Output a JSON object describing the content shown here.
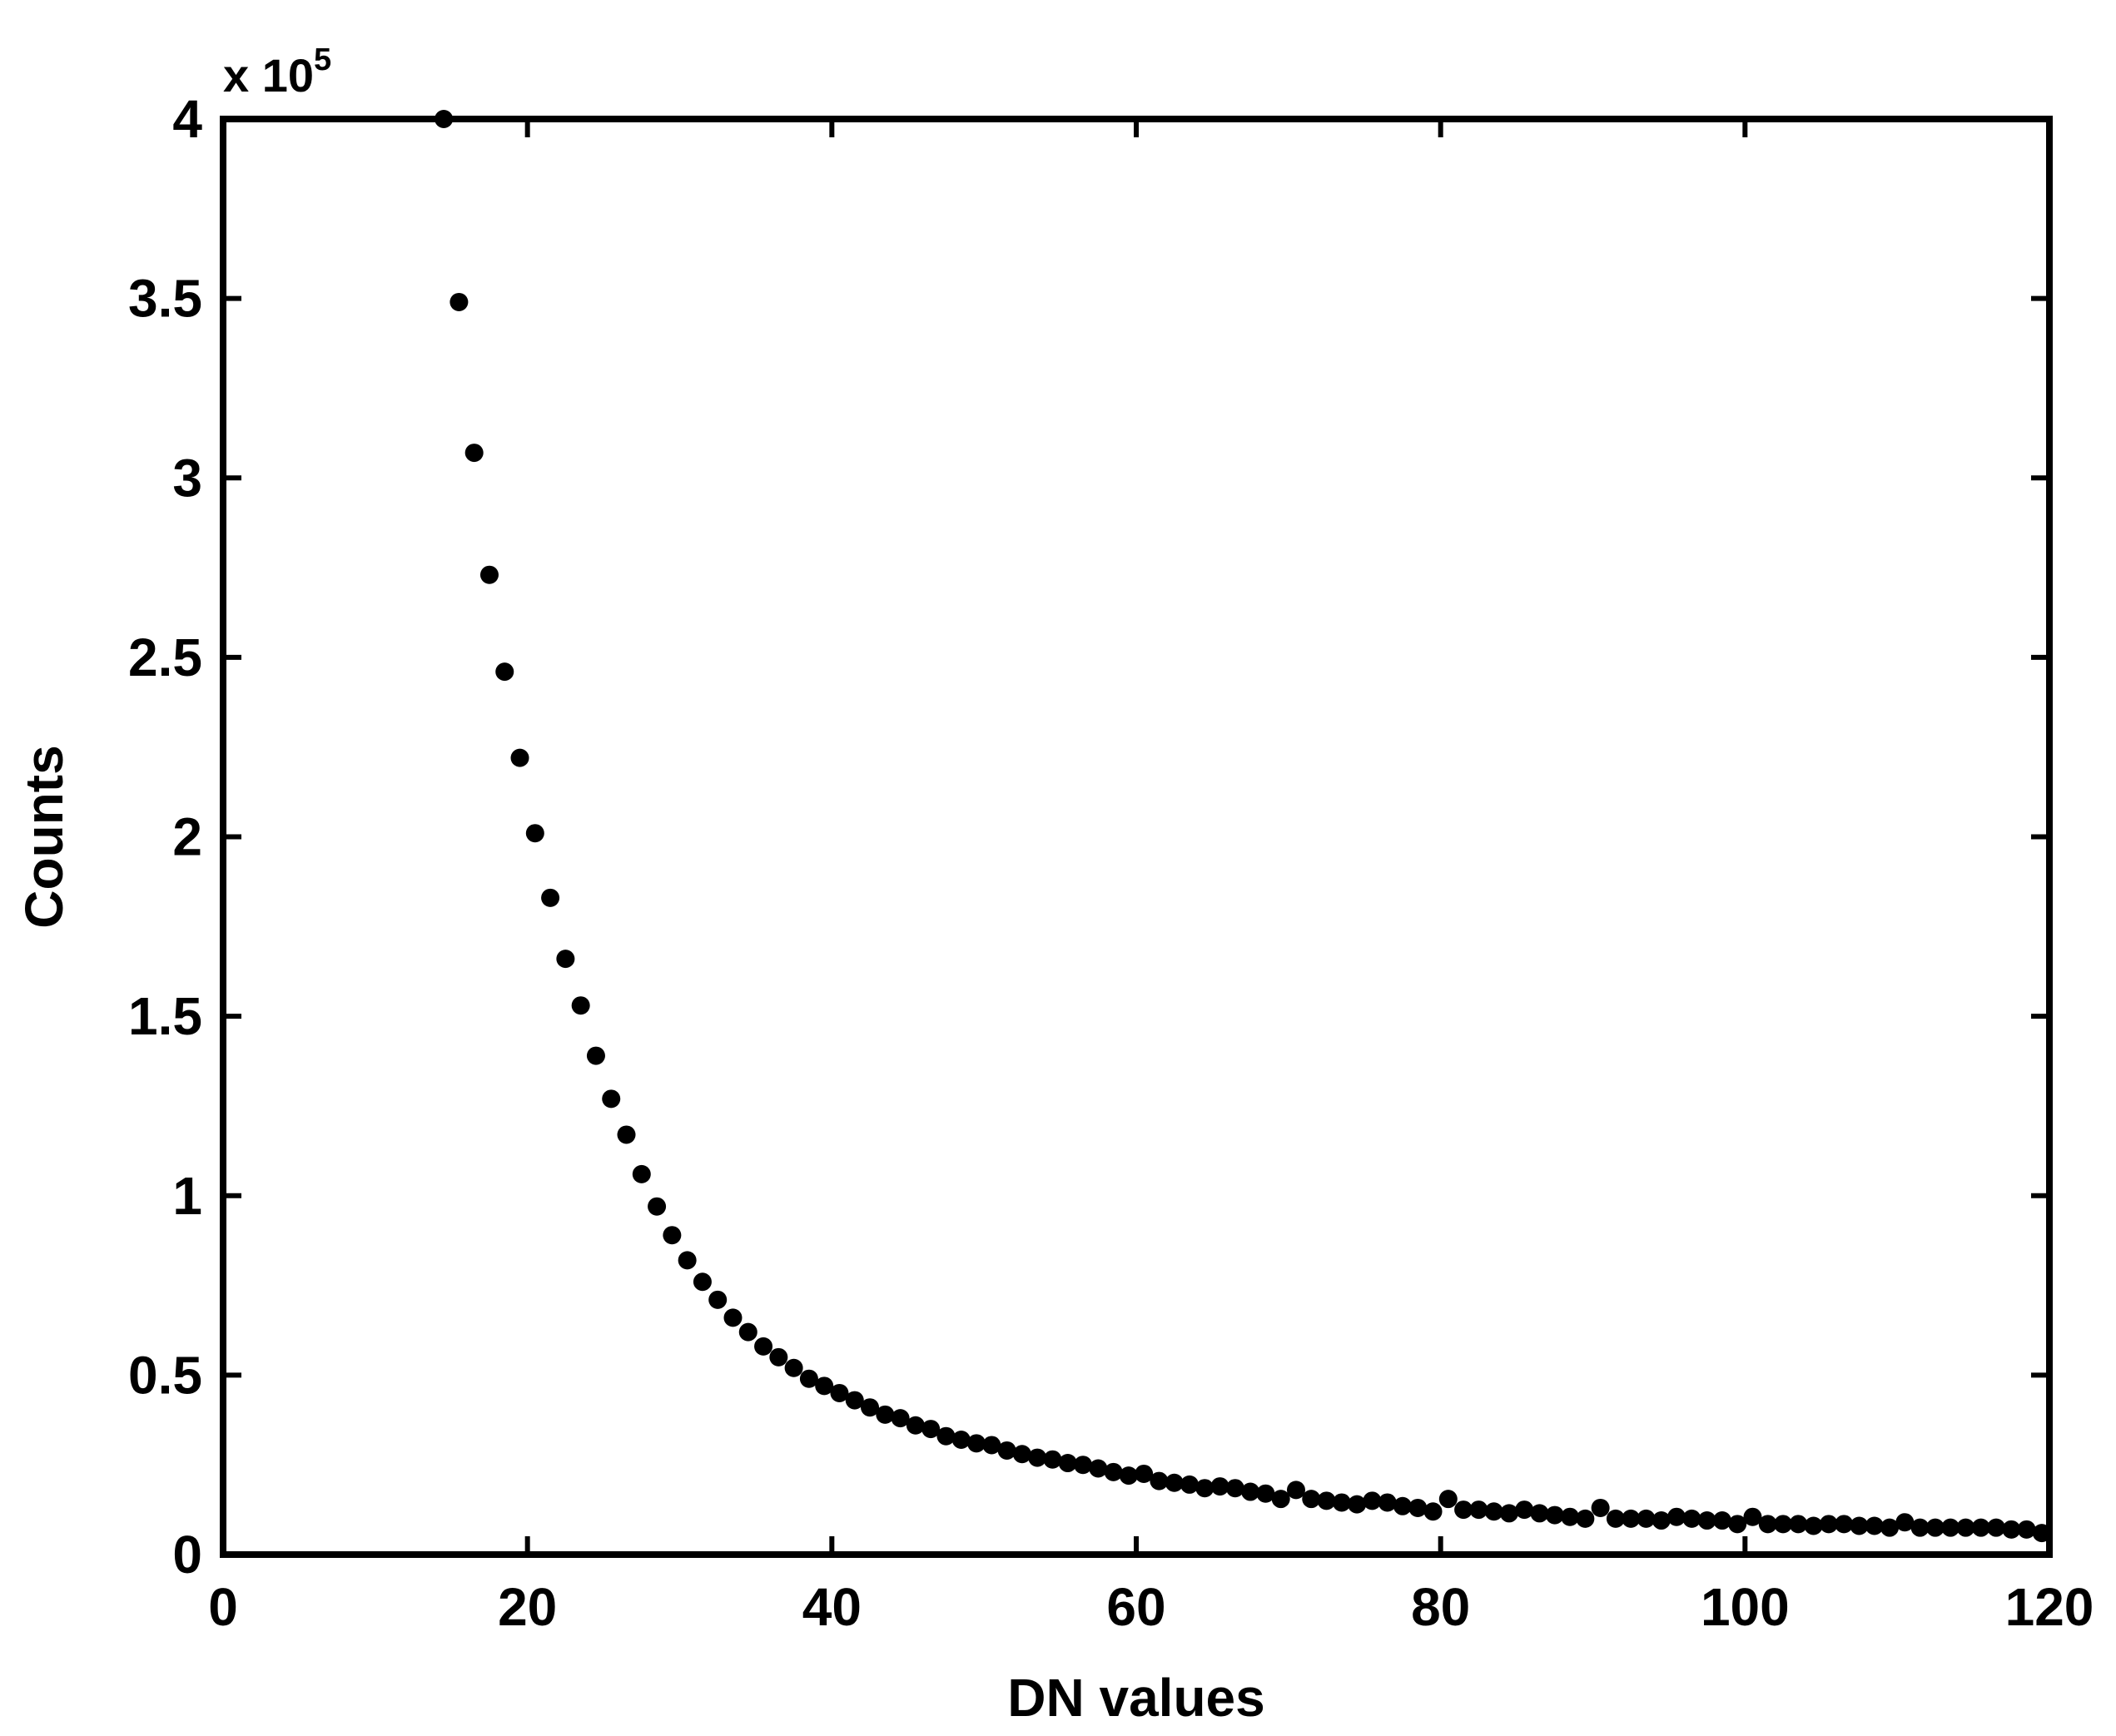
{
  "chart_data": {
    "type": "scatter",
    "title": "",
    "xlabel": "DN values",
    "ylabel": "Counts",
    "exponent_label": {
      "base": "x 10",
      "power": "5"
    },
    "xlim": [
      0,
      120
    ],
    "ylim": [
      0,
      4
    ],
    "x_ticks": [
      0,
      20,
      40,
      60,
      80,
      100,
      120
    ],
    "x_tick_labels": [
      "0",
      "20",
      "40",
      "60",
      "80",
      "100",
      "120"
    ],
    "y_ticks": [
      0,
      0.5,
      1,
      1.5,
      2,
      2.5,
      3,
      3.5,
      4
    ],
    "y_tick_labels": [
      "0",
      "0.5",
      "1",
      "1.5",
      "2",
      "2.5",
      "3",
      "3.5",
      "4"
    ],
    "grid": false,
    "marker_color": "#000000",
    "series": [
      {
        "x": [
          14.5,
          15.5,
          16.5,
          17.5,
          18.5,
          19.5,
          20.5,
          21.5,
          22.5,
          23.5,
          24.5,
          25.5,
          26.5,
          27.5,
          28.5,
          29.5,
          30.5,
          31.5,
          32.5,
          33.5,
          34.5,
          35.5,
          36.5,
          37.5,
          38.5,
          39.5,
          40.5,
          41.5,
          42.5,
          43.5,
          44.5,
          45.5,
          46.5,
          47.5,
          48.5,
          49.5,
          50.5,
          51.5,
          52.5,
          53.5,
          54.5,
          55.5,
          56.5,
          57.5,
          58.5,
          59.5,
          60.5,
          61.5,
          62.5,
          63.5,
          64.5,
          65.5,
          66.5,
          67.5,
          68.5,
          69.5,
          70.5,
          71.5,
          72.5,
          73.5,
          74.5,
          75.5,
          76.5,
          77.5,
          78.5,
          79.5,
          80.5,
          81.5,
          82.5,
          83.5,
          84.5,
          85.5,
          86.5,
          87.5,
          88.5,
          89.5,
          90.5,
          91.5,
          92.5,
          93.5,
          94.5,
          95.5,
          96.5,
          97.5,
          98.5,
          99.5,
          100.5,
          101.5,
          102.5,
          103.5,
          104.5,
          105.5,
          106.5,
          107.5,
          108.5,
          109.5,
          110.5,
          111.5,
          112.5,
          113.5,
          114.5,
          115.5,
          116.5,
          117.5,
          118.5,
          119.5
        ],
        "y": [
          4.0,
          3.49,
          3.07,
          2.73,
          2.46,
          2.22,
          2.01,
          1.83,
          1.66,
          1.53,
          1.39,
          1.27,
          1.17,
          1.06,
          0.97,
          0.89,
          0.82,
          0.76,
          0.71,
          0.66,
          0.62,
          0.58,
          0.55,
          0.52,
          0.49,
          0.47,
          0.45,
          0.43,
          0.41,
          0.39,
          0.38,
          0.36,
          0.35,
          0.33,
          0.32,
          0.31,
          0.305,
          0.29,
          0.28,
          0.27,
          0.265,
          0.255,
          0.25,
          0.24,
          0.23,
          0.22,
          0.225,
          0.205,
          0.2,
          0.195,
          0.185,
          0.19,
          0.185,
          0.175,
          0.17,
          0.155,
          0.18,
          0.155,
          0.15,
          0.145,
          0.14,
          0.15,
          0.145,
          0.135,
          0.13,
          0.12,
          0.155,
          0.125,
          0.125,
          0.12,
          0.115,
          0.125,
          0.115,
          0.11,
          0.105,
          0.1,
          0.13,
          0.1,
          0.1,
          0.1,
          0.095,
          0.105,
          0.1,
          0.095,
          0.095,
          0.085,
          0.105,
          0.085,
          0.085,
          0.085,
          0.08,
          0.085,
          0.085,
          0.08,
          0.08,
          0.075,
          0.09,
          0.075,
          0.075,
          0.075,
          0.075,
          0.075,
          0.075,
          0.07,
          0.07,
          0.06
        ]
      }
    ]
  }
}
